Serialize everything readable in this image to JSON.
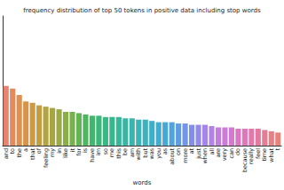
{
  "chart_data": {
    "type": "bar",
    "title": "frequency distribution of top 50 tokens in positive data including stop words",
    "x_label": "words",
    "categories": [
      "and",
      "to",
      "the",
      "a",
      "that",
      "of",
      "feeling",
      "my",
      "in",
      "like",
      "it",
      "for",
      "is",
      "have",
      "im",
      "so",
      "me",
      "this",
      "be",
      "am",
      "with",
      "but",
      "was",
      "you",
      "as",
      "about",
      "on",
      "more",
      "at",
      "just",
      "when",
      "all",
      "are",
      "very",
      "can",
      "do",
      "because",
      "really",
      "feel",
      "time",
      "what",
      "t"
    ],
    "values": [
      46,
      44,
      39,
      34,
      33,
      31,
      30,
      29,
      28,
      26,
      26,
      25,
      24,
      23,
      23,
      22,
      22,
      22,
      21,
      21,
      20,
      20,
      19,
      18,
      18,
      18,
      17,
      17,
      16,
      16,
      16,
      15,
      14,
      14,
      14,
      13,
      13,
      13,
      13,
      12,
      11,
      10
    ],
    "colors": [
      "#e8836f",
      "#e58a5f",
      "#df8f50",
      "#d6944a",
      "#cc9944",
      "#c19e42",
      "#b5a242",
      "#a8a643",
      "#9aaa44",
      "#8aae47",
      "#77b14d",
      "#62b455",
      "#4db65f",
      "#40b76b",
      "#3bb878",
      "#39b884",
      "#38b78f",
      "#38b699",
      "#39b5a3",
      "#3ab4ac",
      "#3cb3b5",
      "#3db1be",
      "#3fafc6",
      "#42acce",
      "#47a8d6",
      "#51a3dd",
      "#5f9de3",
      "#7096e7",
      "#828fea",
      "#948aea",
      "#a585e8",
      "#b481e4",
      "#c17ede",
      "#cc7bd6",
      "#d479ce",
      "#db78c4",
      "#e077b9",
      "#e378ad",
      "#e57aa1",
      "#e67c94",
      "#e77f87",
      "#e8827b"
    ],
    "ylim": [
      0,
      100
    ],
    "grid": false,
    "tick_labels": "x"
  }
}
